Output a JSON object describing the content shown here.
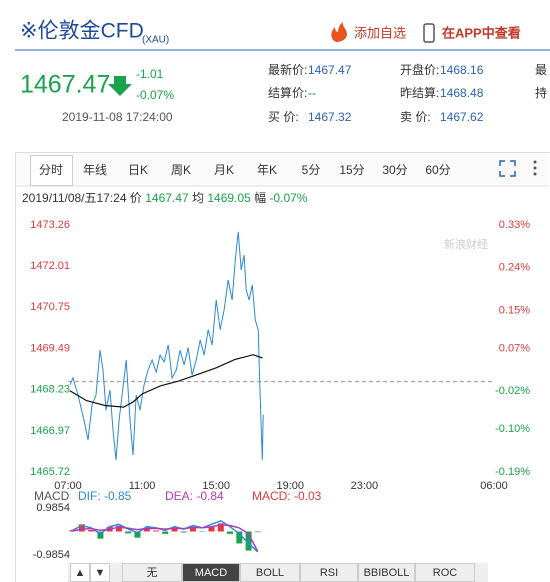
{
  "header": {
    "title": "※伦敦金CFD",
    "code": "(XAU)",
    "add": "添加自选",
    "app": "在APP中查看"
  },
  "quote": {
    "price": "1467.47",
    "change": "-1.01",
    "change_pct": "-0.07%",
    "time": "2019-11-08 17:24:00"
  },
  "info": [
    [
      {
        "label": "最新价:",
        "value": "1467.47"
      },
      {
        "label": "开盘价:",
        "value": "1468.16"
      },
      {
        "label": "最"
      }
    ],
    [
      {
        "label": "结算价:",
        "value": "--"
      },
      {
        "label": "昨结算:",
        "value": "1468.48"
      },
      {
        "label": "持"
      }
    ],
    [
      {
        "label": "买 价:",
        "value": "1467.32"
      },
      {
        "label": "卖 价:",
        "value": "1467.62"
      }
    ]
  ],
  "tabs": [
    "分时",
    "年线",
    "日K",
    "周K",
    "月K",
    "年K",
    "5分",
    "15分",
    "30分",
    "60分"
  ],
  "status": {
    "time": "2019/11/08/五17:24",
    "price_label": "价",
    "price": "1467.47",
    "avg_label": "均",
    "avg": "1469.05",
    "amp_label": "幅",
    "amp": "-0.07%"
  },
  "watermark": "新浪财经",
  "macd_legend": {
    "name": "MACD",
    "dif": "DIF: -0.85",
    "dea": "DEA: -0.84",
    "macd": "MACD: -0.03"
  },
  "indicator_tabs": [
    "▲",
    "▼",
    "无",
    "MACD",
    "BOLL",
    "RSI",
    "BBIBOLL",
    "ROC"
  ],
  "chart_data": [
    {
      "type": "line",
      "xlim": [
        7,
        30
      ],
      "xticks": [
        {
          "value": 7,
          "label": "07:00"
        },
        {
          "value": 11,
          "label": "11:00"
        },
        {
          "value": 15,
          "label": "15:00"
        },
        {
          "value": 19,
          "label": "19:00"
        },
        {
          "value": 23,
          "label": "23:00"
        },
        {
          "value": 30,
          "label": "06:00"
        }
      ],
      "ylim": [
        1465.72,
        1473.26
      ],
      "yticks": [
        1473.26,
        1472.01,
        1470.75,
        1469.49,
        1468.23,
        1466.97,
        1465.72
      ],
      "y2lim": [
        -0.19,
        0.33
      ],
      "y2ticks": [
        {
          "value": 0.33,
          "label": "0.33%"
        },
        {
          "value": 0.24,
          "label": "0.24%"
        },
        {
          "value": 0.15,
          "label": "0.15%"
        },
        {
          "value": 0.07,
          "label": "0.07%"
        },
        {
          "value": -0.02,
          "label": "-0.02%"
        },
        {
          "value": -0.1,
          "label": "-0.10%"
        },
        {
          "value": -0.19,
          "label": "-0.19%"
        }
      ],
      "up_color": "#e4393c",
      "down_color": "#1aa34a",
      "series": [
        {
          "color": "#2a8ad4",
          "x": [
            7.11,
            7.27,
            7.54,
            7.86,
            8.08,
            8.3,
            8.51,
            8.73,
            8.89,
            9.05,
            9.27,
            9.43,
            9.59,
            9.76,
            9.92,
            10.14,
            10.35,
            10.51,
            10.68,
            10.89,
            11.11,
            11.32,
            11.54,
            11.76,
            11.97,
            12.19,
            12.41,
            12.62,
            12.84,
            13.05,
            13.27,
            13.49,
            13.7,
            13.92,
            14.14,
            14.35,
            14.57,
            14.78,
            15.0,
            15.22,
            15.43,
            15.65,
            15.86,
            16.03,
            16.19,
            16.35,
            16.51,
            16.62,
            16.78,
            16.95,
            17.11,
            17.27,
            17.38,
            17.49,
            17.54
          ],
          "values": [
            1468.38,
            1468.59,
            1468.07,
            1467.31,
            1466.7,
            1467.77,
            1468.07,
            1469.44,
            1468.83,
            1467.61,
            1468.22,
            1467.0,
            1466.09,
            1467.31,
            1468.07,
            1469.14,
            1467.31,
            1466.24,
            1468.07,
            1467.61,
            1468.38,
            1468.83,
            1469.14,
            1468.77,
            1469.29,
            1469.08,
            1469.6,
            1468.59,
            1468.83,
            1469.44,
            1468.99,
            1469.51,
            1468.68,
            1469.14,
            1469.75,
            1469.29,
            1470.06,
            1469.6,
            1470.97,
            1470.06,
            1470.67,
            1471.58,
            1470.97,
            1472.19,
            1473.05,
            1471.89,
            1472.34,
            1471.28,
            1470.97,
            1471.43,
            1470.36,
            1470.06,
            1467.92,
            1466.09,
            1467.47
          ]
        },
        {
          "color": "#111111",
          "x": [
            7.11,
            8,
            9,
            10,
            10.5,
            11,
            12,
            13,
            14,
            15,
            16,
            17,
            17.5
          ],
          "values": [
            1468.2,
            1467.9,
            1467.75,
            1467.7,
            1467.85,
            1468.1,
            1468.35,
            1468.5,
            1468.7,
            1468.9,
            1469.15,
            1469.3,
            1469.2
          ]
        }
      ]
    },
    {
      "type": "macd",
      "xlim": [
        7,
        30
      ],
      "ylim": [
        -0.9854,
        0.9854
      ],
      "yticks": [
        0.9854,
        -0.9854
      ],
      "positive_color": "#e4393c",
      "negative_color": "#1aa34a",
      "x": [
        7.25,
        7.75,
        8.25,
        8.75,
        9.25,
        9.75,
        10.25,
        10.75,
        11.25,
        11.75,
        12.25,
        12.75,
        13.25,
        13.75,
        14.25,
        14.75,
        15.25,
        15.75,
        16.25,
        16.75,
        17.25
      ],
      "histogram": [
        0.06,
        0.3,
        0.06,
        -0.3,
        0.2,
        0.24,
        -0.08,
        -0.26,
        0.16,
        0.04,
        -0.1,
        0.12,
        -0.04,
        0.16,
        -0.02,
        0.2,
        0.34,
        -0.1,
        -0.5,
        -0.8,
        -0.03
      ],
      "series": [
        {
          "color": "#2a8ad4",
          "values": [
            0.05,
            0.25,
            0.15,
            -0.1,
            0.2,
            0.3,
            0.1,
            -0.05,
            0.2,
            0.15,
            0.05,
            0.2,
            0.1,
            0.25,
            0.15,
            0.3,
            0.45,
            0.2,
            -0.1,
            -0.5,
            -0.85
          ]
        },
        {
          "color": "#b03ab8",
          "values": [
            0.02,
            0.1,
            0.12,
            0.05,
            0.1,
            0.18,
            0.14,
            0.08,
            0.12,
            0.13,
            0.1,
            0.14,
            0.12,
            0.17,
            0.16,
            0.2,
            0.28,
            0.25,
            0.15,
            -0.1,
            -0.84
          ]
        }
      ]
    }
  ]
}
